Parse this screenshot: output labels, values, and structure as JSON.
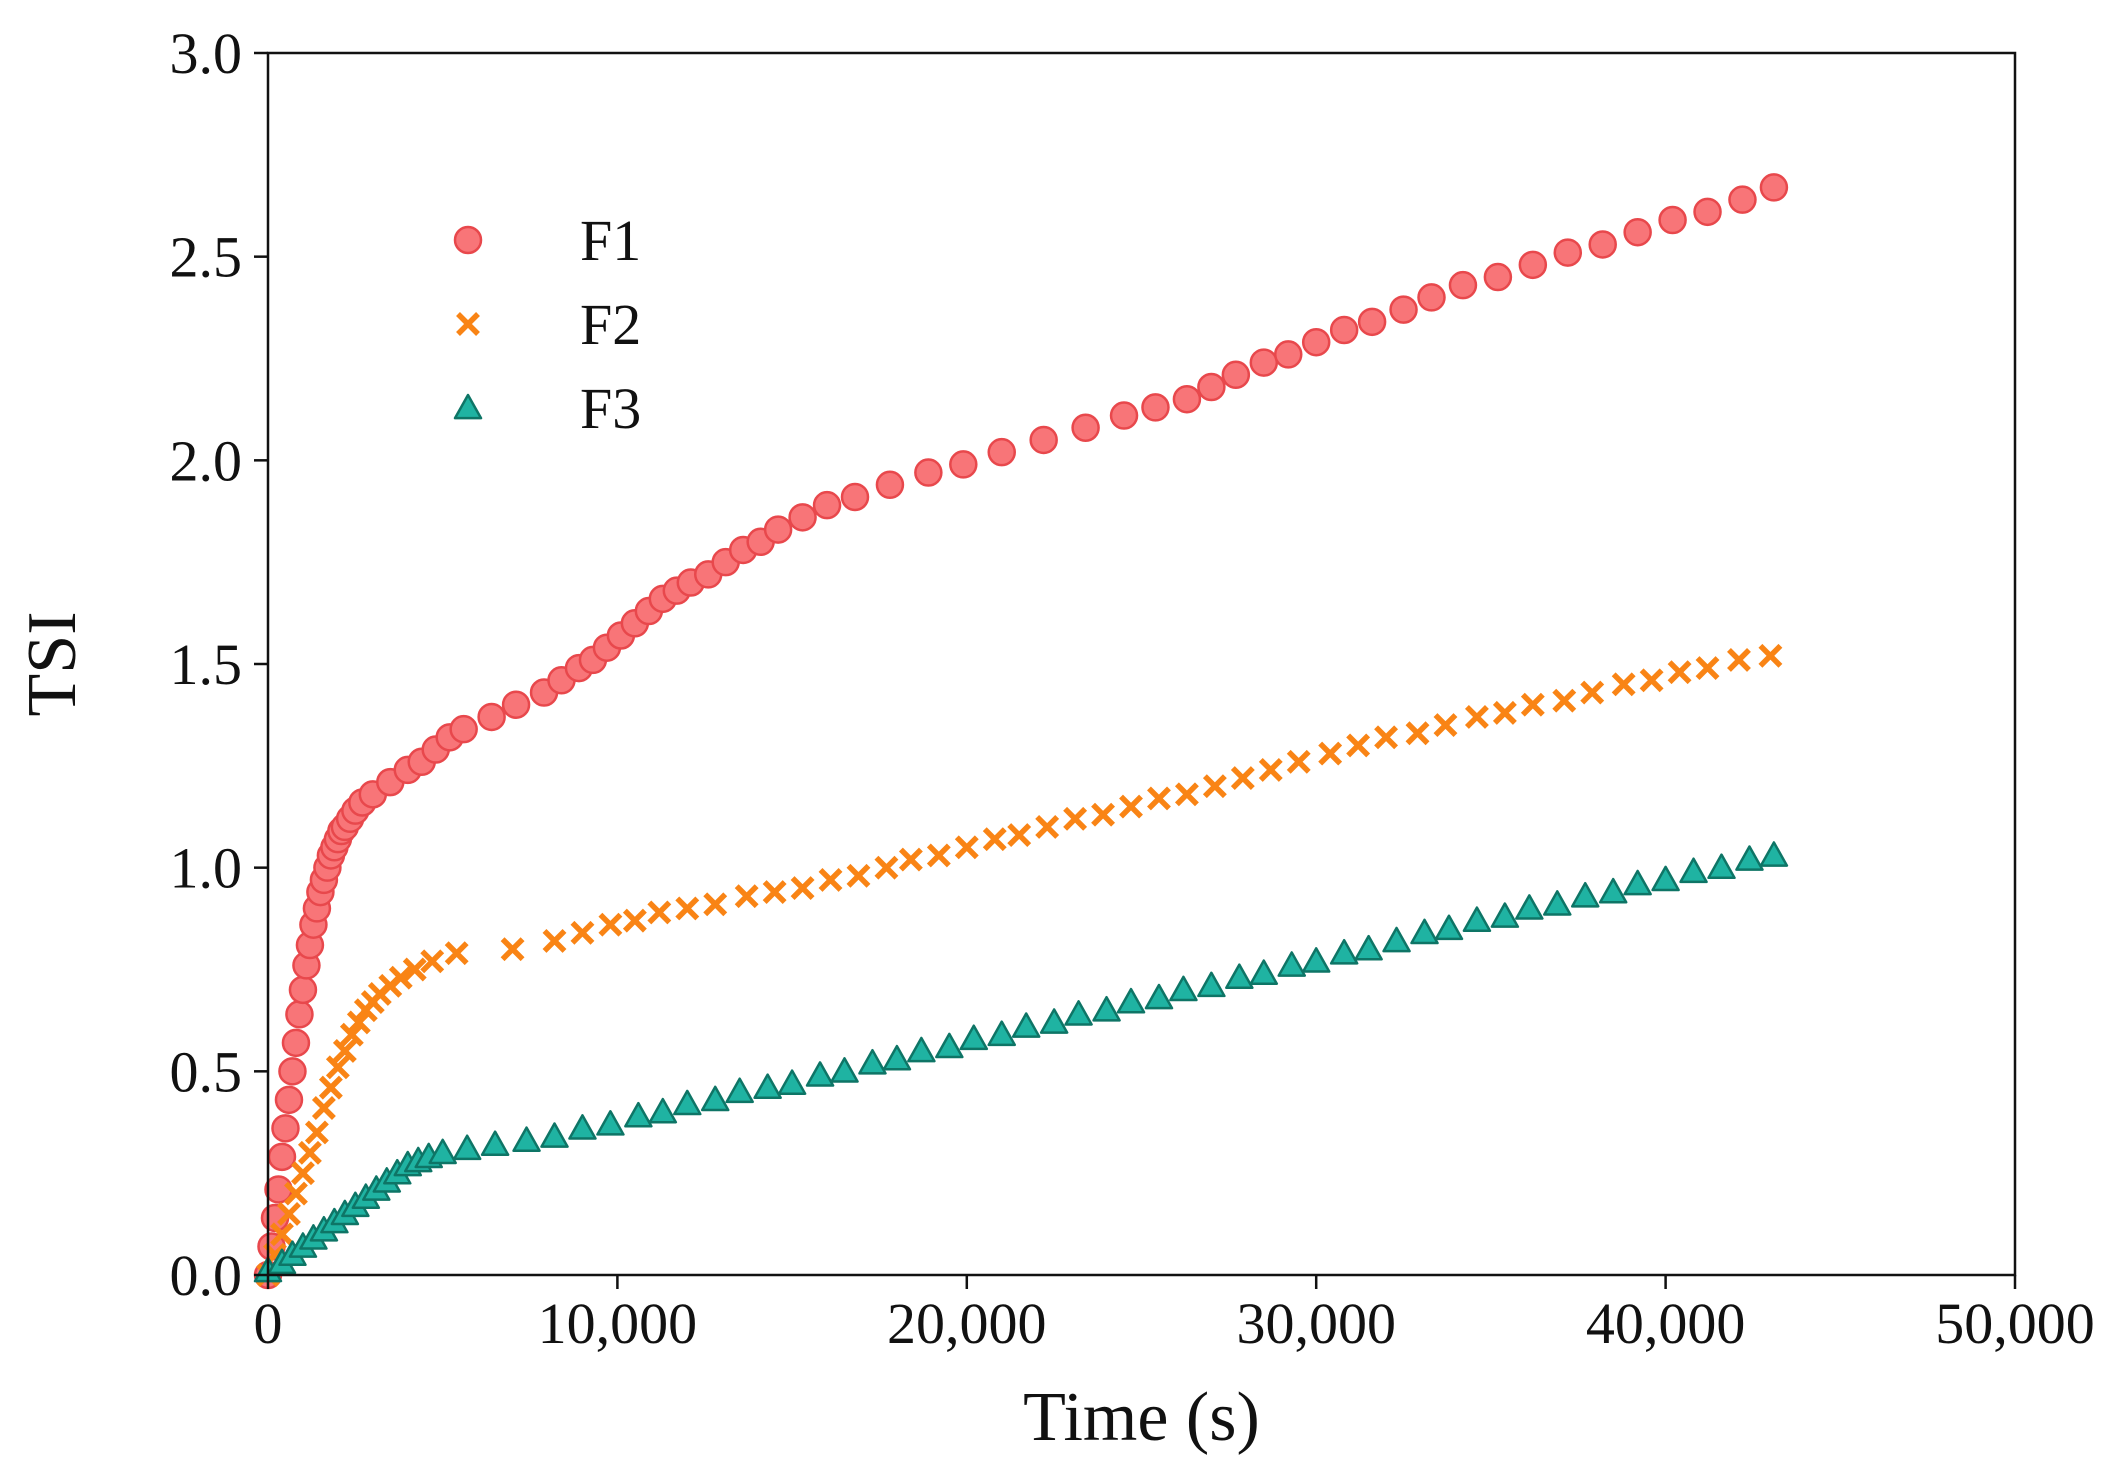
{
  "chart_data": {
    "type": "scatter",
    "title": "",
    "xlabel": "Time (s)",
    "ylabel": "TSI",
    "xlim": [
      0,
      50000
    ],
    "ylim": [
      0,
      3.0
    ],
    "x_ticks": [
      0,
      10000,
      20000,
      30000,
      40000,
      50000
    ],
    "x_tick_labels": [
      "0",
      "10,000",
      "20,000",
      "30,000",
      "40,000",
      "50,000"
    ],
    "y_ticks": [
      0,
      0.5,
      1.0,
      1.5,
      2.0,
      2.5,
      3.0
    ],
    "y_tick_labels": [
      "0.0",
      "0.5",
      "1.0",
      "1.5",
      "2.0",
      "2.5",
      "3.0"
    ],
    "grid": false,
    "legend_position": "top-left",
    "series": [
      {
        "name": "F1",
        "marker": "circle",
        "color": "#f87578",
        "edge_color": "#e8484c",
        "points": [
          [
            0,
            0.0
          ],
          [
            100,
            0.07
          ],
          [
            200,
            0.14
          ],
          [
            300,
            0.21
          ],
          [
            400,
            0.29
          ],
          [
            500,
            0.36
          ],
          [
            600,
            0.43
          ],
          [
            700,
            0.5
          ],
          [
            800,
            0.57
          ],
          [
            900,
            0.64
          ],
          [
            1000,
            0.7
          ],
          [
            1100,
            0.76
          ],
          [
            1200,
            0.81
          ],
          [
            1300,
            0.86
          ],
          [
            1400,
            0.9
          ],
          [
            1500,
            0.94
          ],
          [
            1600,
            0.97
          ],
          [
            1700,
            1.0
          ],
          [
            1800,
            1.03
          ],
          [
            1900,
            1.05
          ],
          [
            2000,
            1.07
          ],
          [
            2100,
            1.09
          ],
          [
            2200,
            1.1
          ],
          [
            2350,
            1.12
          ],
          [
            2500,
            1.14
          ],
          [
            2700,
            1.16
          ],
          [
            3000,
            1.18
          ],
          [
            3500,
            1.21
          ],
          [
            4000,
            1.24
          ],
          [
            4400,
            1.26
          ],
          [
            4800,
            1.29
          ],
          [
            5200,
            1.32
          ],
          [
            5600,
            1.34
          ],
          [
            6400,
            1.37
          ],
          [
            7100,
            1.4
          ],
          [
            7900,
            1.43
          ],
          [
            8400,
            1.46
          ],
          [
            8900,
            1.49
          ],
          [
            9300,
            1.51
          ],
          [
            9700,
            1.54
          ],
          [
            10100,
            1.57
          ],
          [
            10500,
            1.6
          ],
          [
            10900,
            1.63
          ],
          [
            11300,
            1.66
          ],
          [
            11700,
            1.68
          ],
          [
            12100,
            1.7
          ],
          [
            12600,
            1.72
          ],
          [
            13100,
            1.75
          ],
          [
            13600,
            1.78
          ],
          [
            14100,
            1.8
          ],
          [
            14600,
            1.83
          ],
          [
            15300,
            1.86
          ],
          [
            16000,
            1.89
          ],
          [
            16800,
            1.91
          ],
          [
            17800,
            1.94
          ],
          [
            18900,
            1.97
          ],
          [
            19900,
            1.99
          ],
          [
            21000,
            2.02
          ],
          [
            22200,
            2.05
          ],
          [
            23400,
            2.08
          ],
          [
            24500,
            2.11
          ],
          [
            25400,
            2.13
          ],
          [
            26300,
            2.15
          ],
          [
            27000,
            2.18
          ],
          [
            27700,
            2.21
          ],
          [
            28500,
            2.24
          ],
          [
            29200,
            2.26
          ],
          [
            30000,
            2.29
          ],
          [
            30800,
            2.32
          ],
          [
            31600,
            2.34
          ],
          [
            32500,
            2.37
          ],
          [
            33300,
            2.4
          ],
          [
            34200,
            2.43
          ],
          [
            35200,
            2.45
          ],
          [
            36200,
            2.48
          ],
          [
            37200,
            2.51
          ],
          [
            38200,
            2.53
          ],
          [
            39200,
            2.56
          ],
          [
            40200,
            2.59
          ],
          [
            41200,
            2.61
          ],
          [
            42200,
            2.64
          ],
          [
            43100,
            2.67
          ]
        ]
      },
      {
        "name": "F2",
        "marker": "x",
        "color": "#f98415",
        "edge_color": "#f98415",
        "points": [
          [
            0,
            0.0
          ],
          [
            200,
            0.05
          ],
          [
            400,
            0.1
          ],
          [
            600,
            0.15
          ],
          [
            800,
            0.2
          ],
          [
            1000,
            0.25
          ],
          [
            1200,
            0.3
          ],
          [
            1400,
            0.35
          ],
          [
            1600,
            0.41
          ],
          [
            1800,
            0.46
          ],
          [
            2000,
            0.51
          ],
          [
            2200,
            0.55
          ],
          [
            2400,
            0.59
          ],
          [
            2600,
            0.62
          ],
          [
            2800,
            0.65
          ],
          [
            3000,
            0.67
          ],
          [
            3200,
            0.69
          ],
          [
            3500,
            0.71
          ],
          [
            3800,
            0.73
          ],
          [
            4200,
            0.75
          ],
          [
            4700,
            0.77
          ],
          [
            5400,
            0.79
          ],
          [
            7000,
            0.8
          ],
          [
            8200,
            0.82
          ],
          [
            9000,
            0.84
          ],
          [
            9800,
            0.86
          ],
          [
            10500,
            0.87
          ],
          [
            11200,
            0.89
          ],
          [
            12000,
            0.9
          ],
          [
            12800,
            0.91
          ],
          [
            13700,
            0.93
          ],
          [
            14500,
            0.94
          ],
          [
            15300,
            0.95
          ],
          [
            16100,
            0.97
          ],
          [
            16900,
            0.98
          ],
          [
            17700,
            1.0
          ],
          [
            18400,
            1.02
          ],
          [
            19200,
            1.03
          ],
          [
            20000,
            1.05
          ],
          [
            20800,
            1.07
          ],
          [
            21500,
            1.08
          ],
          [
            22300,
            1.1
          ],
          [
            23100,
            1.12
          ],
          [
            23900,
            1.13
          ],
          [
            24700,
            1.15
          ],
          [
            25500,
            1.17
          ],
          [
            26300,
            1.18
          ],
          [
            27100,
            1.2
          ],
          [
            27900,
            1.22
          ],
          [
            28700,
            1.24
          ],
          [
            29500,
            1.26
          ],
          [
            30400,
            1.28
          ],
          [
            31200,
            1.3
          ],
          [
            32000,
            1.32
          ],
          [
            32900,
            1.33
          ],
          [
            33700,
            1.35
          ],
          [
            34600,
            1.37
          ],
          [
            35400,
            1.38
          ],
          [
            36200,
            1.4
          ],
          [
            37100,
            1.41
          ],
          [
            37900,
            1.43
          ],
          [
            38800,
            1.45
          ],
          [
            39600,
            1.46
          ],
          [
            40400,
            1.48
          ],
          [
            41200,
            1.49
          ],
          [
            42100,
            1.51
          ],
          [
            43000,
            1.52
          ]
        ]
      },
      {
        "name": "F3",
        "marker": "triangle",
        "color": "#1fb3a2",
        "edge_color": "#0e7566",
        "points": [
          [
            0,
            0.01
          ],
          [
            400,
            0.03
          ],
          [
            700,
            0.05
          ],
          [
            1000,
            0.07
          ],
          [
            1300,
            0.09
          ],
          [
            1600,
            0.11
          ],
          [
            1900,
            0.13
          ],
          [
            2200,
            0.15
          ],
          [
            2500,
            0.17
          ],
          [
            2800,
            0.19
          ],
          [
            3100,
            0.21
          ],
          [
            3400,
            0.23
          ],
          [
            3700,
            0.25
          ],
          [
            4000,
            0.27
          ],
          [
            4300,
            0.28
          ],
          [
            4600,
            0.29
          ],
          [
            5000,
            0.3
          ],
          [
            5700,
            0.31
          ],
          [
            6500,
            0.32
          ],
          [
            7400,
            0.33
          ],
          [
            8200,
            0.34
          ],
          [
            9000,
            0.36
          ],
          [
            9800,
            0.37
          ],
          [
            10600,
            0.39
          ],
          [
            11300,
            0.4
          ],
          [
            12000,
            0.42
          ],
          [
            12800,
            0.43
          ],
          [
            13500,
            0.45
          ],
          [
            14300,
            0.46
          ],
          [
            15000,
            0.47
          ],
          [
            15800,
            0.49
          ],
          [
            16500,
            0.5
          ],
          [
            17300,
            0.52
          ],
          [
            18000,
            0.53
          ],
          [
            18700,
            0.55
          ],
          [
            19500,
            0.56
          ],
          [
            20200,
            0.58
          ],
          [
            21000,
            0.59
          ],
          [
            21700,
            0.61
          ],
          [
            22500,
            0.62
          ],
          [
            23200,
            0.64
          ],
          [
            24000,
            0.65
          ],
          [
            24700,
            0.67
          ],
          [
            25500,
            0.68
          ],
          [
            26200,
            0.7
          ],
          [
            27000,
            0.71
          ],
          [
            27800,
            0.73
          ],
          [
            28500,
            0.74
          ],
          [
            29300,
            0.76
          ],
          [
            30000,
            0.77
          ],
          [
            30800,
            0.79
          ],
          [
            31500,
            0.8
          ],
          [
            32300,
            0.82
          ],
          [
            33100,
            0.84
          ],
          [
            33800,
            0.85
          ],
          [
            34600,
            0.87
          ],
          [
            35400,
            0.88
          ],
          [
            36100,
            0.9
          ],
          [
            36900,
            0.91
          ],
          [
            37700,
            0.93
          ],
          [
            38500,
            0.94
          ],
          [
            39200,
            0.96
          ],
          [
            40000,
            0.97
          ],
          [
            40800,
            0.99
          ],
          [
            41600,
            1.0
          ],
          [
            42400,
            1.02
          ],
          [
            43100,
            1.03
          ]
        ]
      }
    ]
  }
}
